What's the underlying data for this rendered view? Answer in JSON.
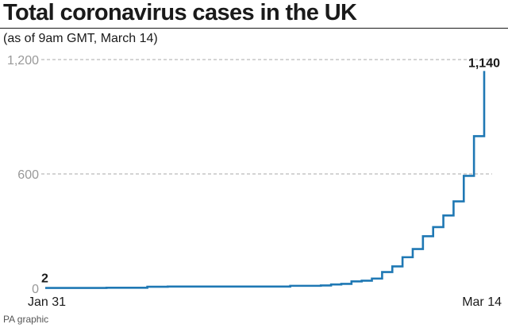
{
  "title": "Total coronavirus cases in the UK",
  "subtitle": "(as of 9am GMT, March 14)",
  "credit": "PA graphic",
  "chart_data": {
    "type": "line",
    "step": true,
    "title": "Total coronavirus cases in the UK",
    "subtitle": "(as of 9am GMT, March 14)",
    "xlabel": "",
    "ylabel": "",
    "x_ticks": [
      "Jan 31",
      "Mar 14"
    ],
    "y_ticks": [
      {
        "value": 0,
        "label": "0"
      },
      {
        "value": 600,
        "label": "600"
      },
      {
        "value": 1200,
        "label": "1,200"
      }
    ],
    "ylim": [
      0,
      1200
    ],
    "grid": "dashed-horizontal",
    "line_color": "#1f78b4",
    "series": [
      {
        "name": "",
        "x": [
          "2020-01-31",
          "2020-02-01",
          "2020-02-02",
          "2020-02-03",
          "2020-02-04",
          "2020-02-05",
          "2020-02-06",
          "2020-02-07",
          "2020-02-08",
          "2020-02-09",
          "2020-02-10",
          "2020-02-11",
          "2020-02-12",
          "2020-02-13",
          "2020-02-14",
          "2020-02-15",
          "2020-02-16",
          "2020-02-17",
          "2020-02-18",
          "2020-02-19",
          "2020-02-20",
          "2020-02-21",
          "2020-02-22",
          "2020-02-23",
          "2020-02-24",
          "2020-02-25",
          "2020-02-26",
          "2020-02-27",
          "2020-02-28",
          "2020-02-29",
          "2020-03-01",
          "2020-03-02",
          "2020-03-03",
          "2020-03-04",
          "2020-03-05",
          "2020-03-06",
          "2020-03-07",
          "2020-03-08",
          "2020-03-09",
          "2020-03-10",
          "2020-03-11",
          "2020-03-12",
          "2020-03-13",
          "2020-03-14"
        ],
        "values": [
          2,
          2,
          2,
          2,
          2,
          2,
          3,
          3,
          3,
          3,
          8,
          8,
          9,
          9,
          9,
          9,
          9,
          9,
          9,
          9,
          9,
          9,
          9,
          9,
          13,
          13,
          13,
          15,
          20,
          23,
          36,
          40,
          51,
          85,
          115,
          163,
          206,
          273,
          321,
          382,
          456,
          590,
          798,
          1140
        ]
      }
    ],
    "annotations": [
      {
        "x": "2020-01-31",
        "y": 2,
        "text": "2"
      },
      {
        "x": "2020-03-14",
        "y": 1140,
        "text": "1,140"
      }
    ]
  }
}
